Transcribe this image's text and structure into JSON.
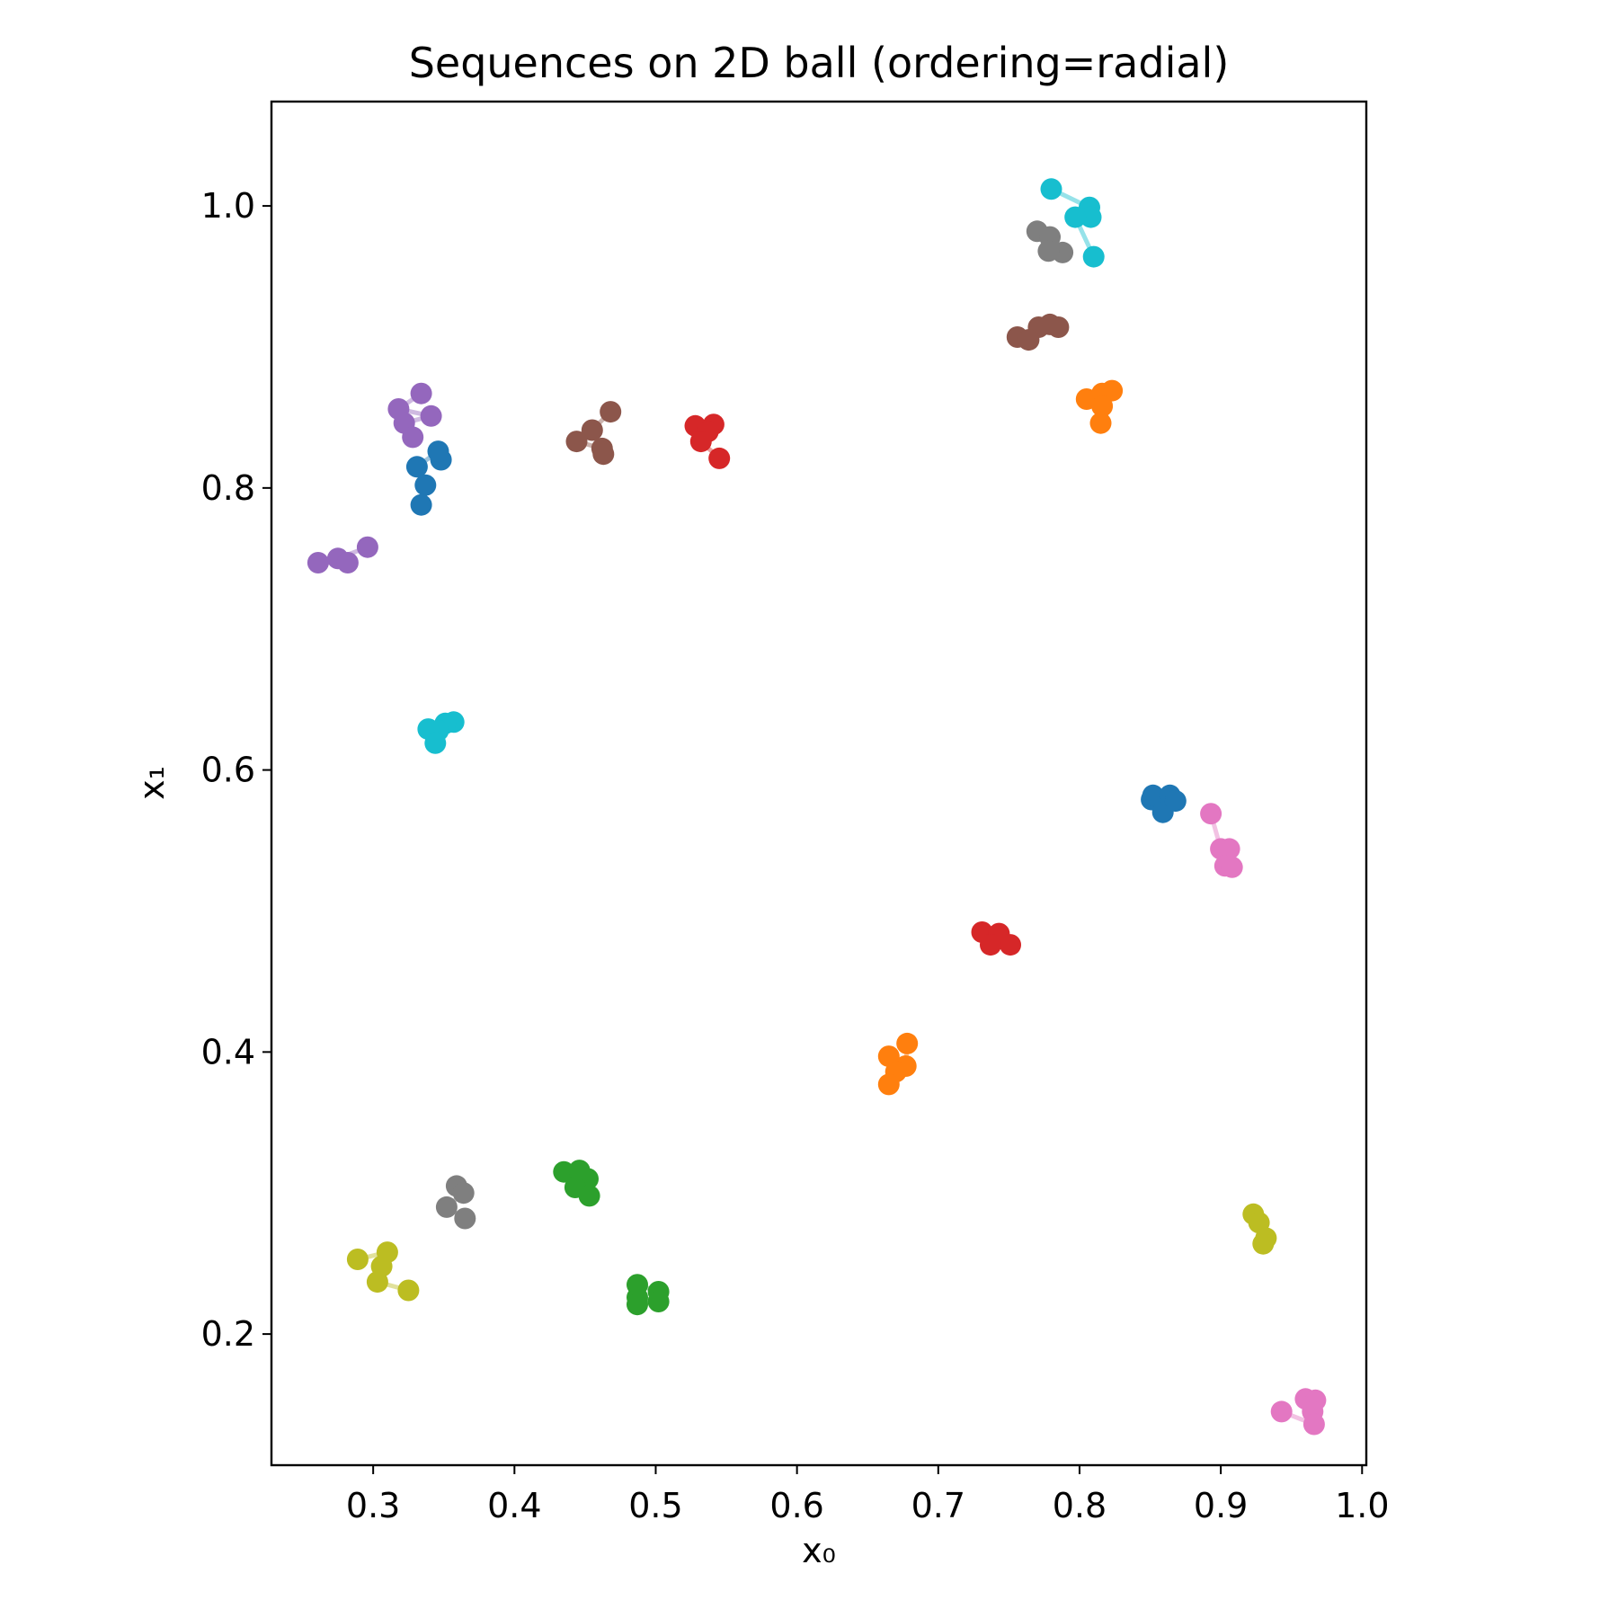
{
  "chart_data": {
    "type": "scatter",
    "title": "Sequences on 2D ball (ordering=radial)",
    "xlabel": "x₀",
    "ylabel": "x₁",
    "xlim": [
      0.228,
      1.003
    ],
    "ylim": [
      0.107,
      1.074
    ],
    "xticks": [
      {
        "value": 0.3,
        "label": "0.3"
      },
      {
        "value": 0.4,
        "label": "0.4"
      },
      {
        "value": 0.5,
        "label": "0.5"
      },
      {
        "value": 0.6,
        "label": "0.6"
      },
      {
        "value": 0.7,
        "label": "0.7"
      },
      {
        "value": 0.8,
        "label": "0.8"
      },
      {
        "value": 0.9,
        "label": "0.9"
      },
      {
        "value": 1.0,
        "label": "1.0"
      }
    ],
    "yticks": [
      {
        "value": 0.2,
        "label": "0.2"
      },
      {
        "value": 0.4,
        "label": "0.4"
      },
      {
        "value": 0.6,
        "label": "0.6"
      },
      {
        "value": 0.8,
        "label": "0.8"
      },
      {
        "value": 1.0,
        "label": "1.0"
      }
    ],
    "grid": false,
    "sequences": [
      {
        "color": "#1f77b4",
        "points": [
          [
            0.348,
            0.82
          ],
          [
            0.346,
            0.826
          ],
          [
            0.331,
            0.815
          ],
          [
            0.337,
            0.802
          ],
          [
            0.334,
            0.788
          ]
        ]
      },
      {
        "color": "#1f77b4",
        "points": [
          [
            0.851,
            0.579
          ],
          [
            0.852,
            0.582
          ],
          [
            0.859,
            0.57
          ],
          [
            0.864,
            0.582
          ],
          [
            0.868,
            0.578
          ]
        ]
      },
      {
        "color": "#ff7f0e",
        "points": [
          [
            0.823,
            0.869
          ],
          [
            0.816,
            0.867
          ],
          [
            0.805,
            0.863
          ],
          [
            0.816,
            0.858
          ],
          [
            0.815,
            0.846
          ]
        ]
      },
      {
        "color": "#ff7f0e",
        "points": [
          [
            0.678,
            0.406
          ],
          [
            0.677,
            0.39
          ],
          [
            0.665,
            0.397
          ],
          [
            0.67,
            0.386
          ],
          [
            0.665,
            0.377
          ]
        ]
      },
      {
        "color": "#2ca02c",
        "points": [
          [
            0.435,
            0.315
          ],
          [
            0.446,
            0.316
          ],
          [
            0.452,
            0.31
          ],
          [
            0.443,
            0.304
          ],
          [
            0.453,
            0.298
          ]
        ]
      },
      {
        "color": "#2ca02c",
        "points": [
          [
            0.487,
            0.235
          ],
          [
            0.502,
            0.23
          ],
          [
            0.502,
            0.223
          ],
          [
            0.487,
            0.226
          ],
          [
            0.487,
            0.221
          ]
        ]
      },
      {
        "color": "#d62728",
        "points": [
          [
            0.528,
            0.844
          ],
          [
            0.541,
            0.845
          ],
          [
            0.537,
            0.84
          ],
          [
            0.532,
            0.833
          ],
          [
            0.545,
            0.821
          ]
        ]
      },
      {
        "color": "#d62728",
        "points": [
          [
            0.731,
            0.485
          ],
          [
            0.743,
            0.484
          ],
          [
            0.737,
            0.476
          ],
          [
            0.751,
            0.476
          ]
        ]
      },
      {
        "color": "#9467bd",
        "points": [
          [
            0.334,
            0.867
          ],
          [
            0.318,
            0.856
          ],
          [
            0.341,
            0.851
          ],
          [
            0.322,
            0.846
          ],
          [
            0.328,
            0.836
          ]
        ]
      },
      {
        "color": "#9467bd",
        "points": [
          [
            0.296,
            0.758
          ],
          [
            0.275,
            0.75
          ],
          [
            0.282,
            0.747
          ],
          [
            0.261,
            0.747
          ]
        ]
      },
      {
        "color": "#8c564b",
        "points": [
          [
            0.468,
            0.854
          ],
          [
            0.455,
            0.841
          ],
          [
            0.444,
            0.833
          ],
          [
            0.462,
            0.828
          ],
          [
            0.463,
            0.824
          ]
        ]
      },
      {
        "color": "#8c564b",
        "points": [
          [
            0.785,
            0.914
          ],
          [
            0.779,
            0.916
          ],
          [
            0.771,
            0.914
          ],
          [
            0.756,
            0.907
          ],
          [
            0.764,
            0.905
          ]
        ]
      },
      {
        "color": "#e377c2",
        "points": [
          [
            0.893,
            0.569
          ],
          [
            0.9,
            0.544
          ],
          [
            0.906,
            0.544
          ],
          [
            0.903,
            0.532
          ],
          [
            0.908,
            0.531
          ]
        ]
      },
      {
        "color": "#e377c2",
        "points": [
          [
            0.96,
            0.154
          ],
          [
            0.967,
            0.153
          ],
          [
            0.965,
            0.145
          ],
          [
            0.966,
            0.136
          ],
          [
            0.943,
            0.145
          ]
        ]
      },
      {
        "color": "#7f7f7f",
        "points": [
          [
            0.77,
            0.982
          ],
          [
            0.779,
            0.978
          ],
          [
            0.788,
            0.967
          ],
          [
            0.778,
            0.968
          ]
        ]
      },
      {
        "color": "#7f7f7f",
        "points": [
          [
            0.359,
            0.305
          ],
          [
            0.364,
            0.3
          ],
          [
            0.352,
            0.29
          ],
          [
            0.365,
            0.282
          ]
        ]
      },
      {
        "color": "#bcbd22",
        "points": [
          [
            0.289,
            0.253
          ],
          [
            0.31,
            0.258
          ],
          [
            0.306,
            0.248
          ],
          [
            0.303,
            0.237
          ],
          [
            0.325,
            0.231
          ]
        ]
      },
      {
        "color": "#bcbd22",
        "points": [
          [
            0.923,
            0.285
          ],
          [
            0.927,
            0.279
          ],
          [
            0.932,
            0.268
          ],
          [
            0.93,
            0.264
          ]
        ]
      },
      {
        "color": "#17becf",
        "points": [
          [
            0.78,
            1.012
          ],
          [
            0.807,
            0.999
          ],
          [
            0.808,
            0.992
          ],
          [
            0.797,
            0.992
          ],
          [
            0.81,
            0.964
          ]
        ]
      },
      {
        "color": "#17becf",
        "points": [
          [
            0.357,
            0.634
          ],
          [
            0.351,
            0.633
          ],
          [
            0.346,
            0.628
          ],
          [
            0.339,
            0.629
          ],
          [
            0.344,
            0.619
          ]
        ]
      }
    ]
  }
}
